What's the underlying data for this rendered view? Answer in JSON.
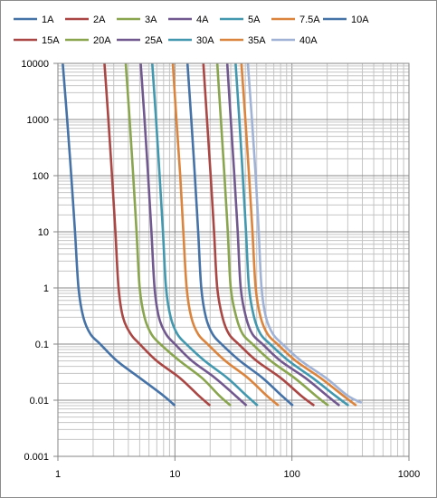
{
  "chart_data": {
    "type": "line",
    "title": "",
    "xlabel": "",
    "ylabel": "",
    "x_scale": "log",
    "y_scale": "log",
    "xlim": [
      1,
      1000
    ],
    "ylim": [
      0.001,
      10000
    ],
    "grid": true,
    "legend_position": "top",
    "x_tick_labels": [
      "1",
      "10",
      "100",
      "1000"
    ],
    "y_tick_labels": [
      "10000",
      "1000",
      "100",
      "10",
      "1",
      "0.1",
      "0.01",
      "0.001"
    ],
    "series": [
      {
        "name": "1A",
        "color": "#4572A7",
        "points": [
          [
            1.1,
            10000
          ],
          [
            1.2,
            1000
          ],
          [
            1.3,
            100
          ],
          [
            1.4,
            10
          ],
          [
            1.5,
            1
          ],
          [
            1.65,
            0.3
          ],
          [
            1.9,
            0.15
          ],
          [
            2.3,
            0.1
          ],
          [
            3.2,
            0.05
          ],
          [
            5,
            0.025
          ],
          [
            8,
            0.012
          ],
          [
            10,
            0.008
          ]
        ]
      },
      {
        "name": "2A",
        "color": "#AA4643",
        "points": [
          [
            2.5,
            10000
          ],
          [
            2.7,
            1000
          ],
          [
            2.9,
            100
          ],
          [
            3.1,
            10
          ],
          [
            3.3,
            1
          ],
          [
            3.6,
            0.3
          ],
          [
            4.2,
            0.15
          ],
          [
            5,
            0.1
          ],
          [
            7,
            0.05
          ],
          [
            11,
            0.025
          ],
          [
            16,
            0.012
          ],
          [
            20,
            0.008
          ]
        ]
      },
      {
        "name": "3A",
        "color": "#89A54E",
        "points": [
          [
            3.8,
            10000
          ],
          [
            4.1,
            1000
          ],
          [
            4.4,
            100
          ],
          [
            4.7,
            10
          ],
          [
            5,
            1
          ],
          [
            5.5,
            0.3
          ],
          [
            6.3,
            0.15
          ],
          [
            7.5,
            0.1
          ],
          [
            11,
            0.05
          ],
          [
            17,
            0.025
          ],
          [
            24,
            0.012
          ],
          [
            30,
            0.008
          ]
        ]
      },
      {
        "name": "4A",
        "color": "#71588F",
        "points": [
          [
            5.1,
            10000
          ],
          [
            5.5,
            1000
          ],
          [
            5.9,
            100
          ],
          [
            6.3,
            10
          ],
          [
            6.7,
            1
          ],
          [
            7.3,
            0.3
          ],
          [
            8.4,
            0.15
          ],
          [
            10,
            0.1
          ],
          [
            14,
            0.05
          ],
          [
            22,
            0.025
          ],
          [
            33,
            0.012
          ],
          [
            41,
            0.008
          ]
        ]
      },
      {
        "name": "5A",
        "color": "#4198AF",
        "points": [
          [
            6.4,
            10000
          ],
          [
            6.9,
            1000
          ],
          [
            7.4,
            100
          ],
          [
            7.9,
            10
          ],
          [
            8.4,
            1
          ],
          [
            9.2,
            0.3
          ],
          [
            10.5,
            0.15
          ],
          [
            12.5,
            0.1
          ],
          [
            18,
            0.05
          ],
          [
            28,
            0.025
          ],
          [
            41,
            0.012
          ],
          [
            51,
            0.008
          ]
        ]
      },
      {
        "name": "7.5A",
        "color": "#DB843D",
        "points": [
          [
            9.6,
            10000
          ],
          [
            10.3,
            1000
          ],
          [
            11.1,
            100
          ],
          [
            11.8,
            10
          ],
          [
            12.6,
            1
          ],
          [
            13.8,
            0.3
          ],
          [
            15.8,
            0.15
          ],
          [
            19,
            0.1
          ],
          [
            27,
            0.05
          ],
          [
            42,
            0.025
          ],
          [
            61,
            0.012
          ],
          [
            77,
            0.008
          ]
        ]
      },
      {
        "name": "10A",
        "color": "#4572A7",
        "points": [
          [
            12.8,
            10000
          ],
          [
            13.8,
            1000
          ],
          [
            14.8,
            100
          ],
          [
            15.8,
            10
          ],
          [
            16.8,
            1
          ],
          [
            18.4,
            0.3
          ],
          [
            21,
            0.15
          ],
          [
            25,
            0.1
          ],
          [
            36,
            0.05
          ],
          [
            56,
            0.025
          ],
          [
            82,
            0.012
          ],
          [
            102,
            0.008
          ]
        ]
      },
      {
        "name": "15A",
        "color": "#AA4643",
        "points": [
          [
            17.5,
            10000
          ],
          [
            18.8,
            1000
          ],
          [
            20.2,
            100
          ],
          [
            21.6,
            10
          ],
          [
            23,
            1
          ],
          [
            25.5,
            0.3
          ],
          [
            29,
            0.15
          ],
          [
            35,
            0.1
          ],
          [
            50,
            0.05
          ],
          [
            80,
            0.025
          ],
          [
            120,
            0.012
          ],
          [
            155,
            0.008
          ]
        ]
      },
      {
        "name": "20A",
        "color": "#89A54E",
        "points": [
          [
            23,
            10000
          ],
          [
            24.7,
            1000
          ],
          [
            26.5,
            100
          ],
          [
            28.3,
            10
          ],
          [
            30,
            1
          ],
          [
            33.5,
            0.3
          ],
          [
            38,
            0.15
          ],
          [
            46,
            0.1
          ],
          [
            66,
            0.05
          ],
          [
            105,
            0.025
          ],
          [
            160,
            0.012
          ],
          [
            205,
            0.008
          ]
        ]
      },
      {
        "name": "25A",
        "color": "#71588F",
        "points": [
          [
            28,
            10000
          ],
          [
            30,
            1000
          ],
          [
            32.2,
            100
          ],
          [
            34.4,
            10
          ],
          [
            36.5,
            1
          ],
          [
            40.5,
            0.3
          ],
          [
            46,
            0.15
          ],
          [
            56,
            0.1
          ],
          [
            80,
            0.05
          ],
          [
            130,
            0.025
          ],
          [
            200,
            0.012
          ],
          [
            255,
            0.008
          ]
        ]
      },
      {
        "name": "30A",
        "color": "#4198AF",
        "points": [
          [
            33,
            10000
          ],
          [
            35.5,
            1000
          ],
          [
            38,
            100
          ],
          [
            40.5,
            10
          ],
          [
            43,
            1
          ],
          [
            47.5,
            0.3
          ],
          [
            54,
            0.15
          ],
          [
            65,
            0.1
          ],
          [
            94,
            0.05
          ],
          [
            150,
            0.025
          ],
          [
            235,
            0.012
          ],
          [
            305,
            0.008
          ]
        ]
      },
      {
        "name": "35A",
        "color": "#DB843D",
        "points": [
          [
            37,
            10000
          ],
          [
            40,
            1000
          ],
          [
            43,
            100
          ],
          [
            46,
            10
          ],
          [
            49,
            1
          ],
          [
            54,
            0.3
          ],
          [
            62,
            0.15
          ],
          [
            75,
            0.1
          ],
          [
            108,
            0.05
          ],
          [
            175,
            0.025
          ],
          [
            275,
            0.012
          ],
          [
            355,
            0.008
          ]
        ]
      },
      {
        "name": "40A",
        "color": "#A0B3D6",
        "points": [
          [
            42,
            10000
          ],
          [
            45.5,
            1000
          ],
          [
            49,
            100
          ],
          [
            52,
            10
          ],
          [
            55,
            1
          ],
          [
            60,
            0.3
          ],
          [
            69,
            0.15
          ],
          [
            83,
            0.1
          ],
          [
            120,
            0.05
          ],
          [
            195,
            0.025
          ],
          [
            300,
            0.012
          ],
          [
            395,
            0.009
          ]
        ]
      }
    ]
  }
}
